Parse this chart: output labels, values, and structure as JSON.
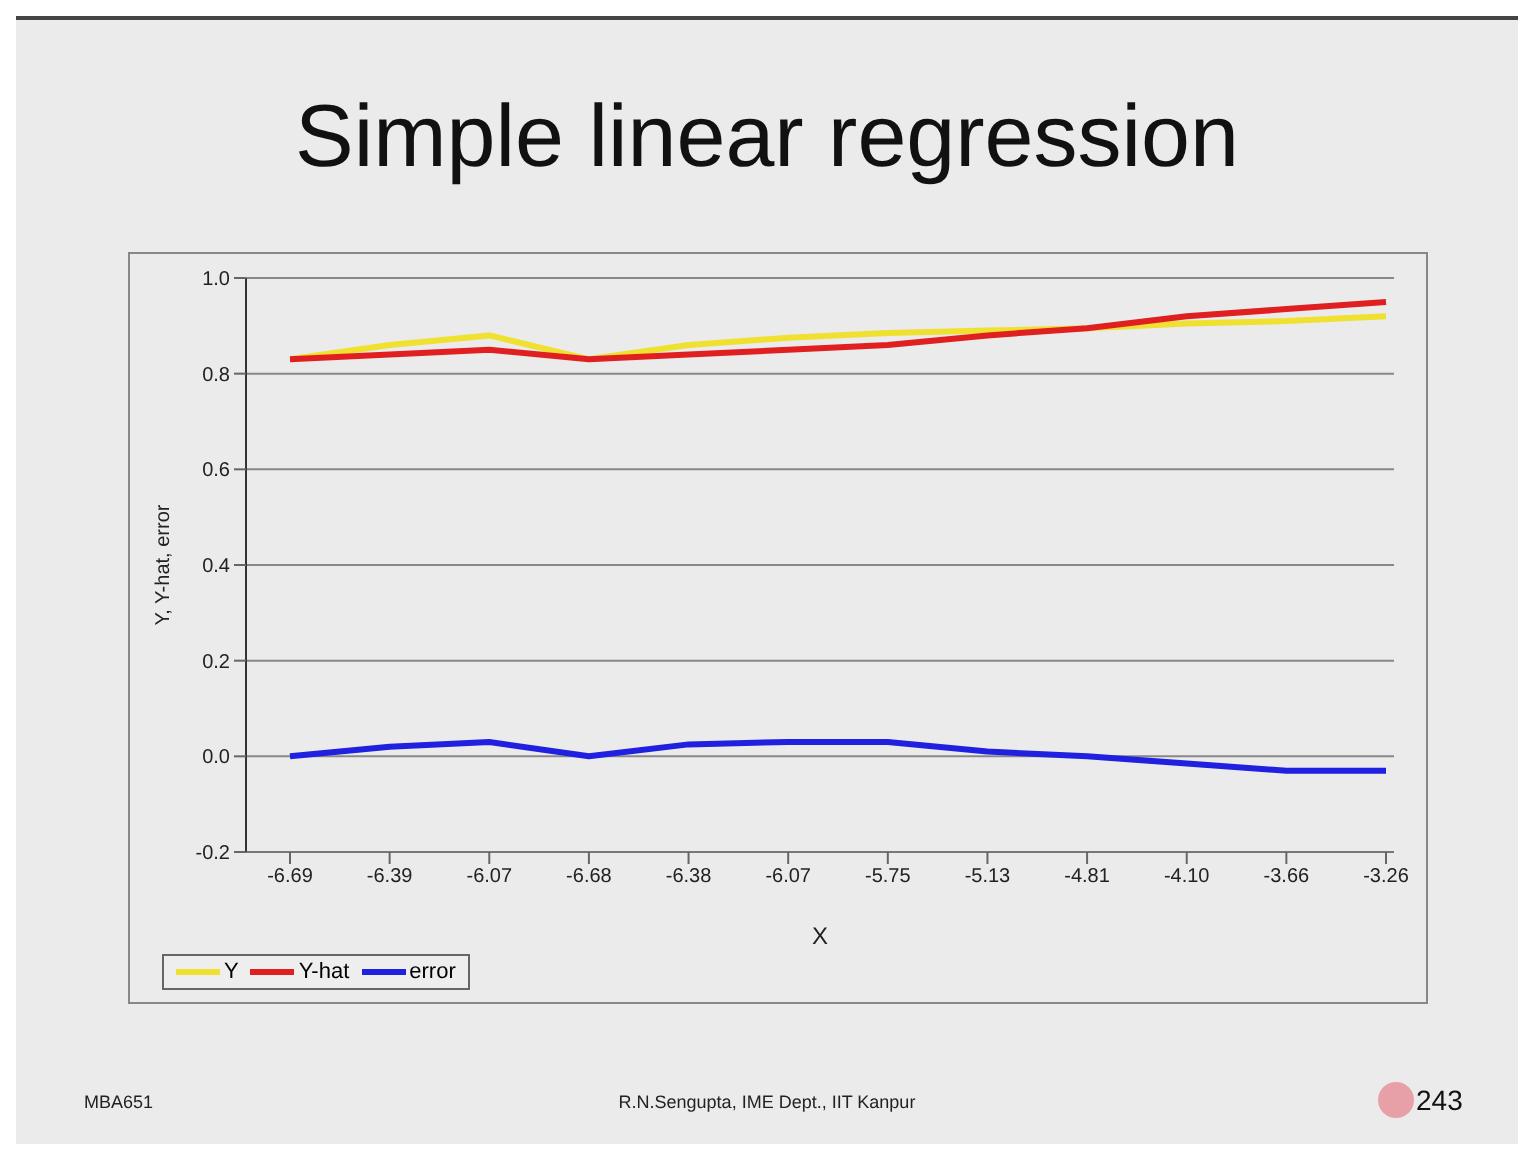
{
  "chart_data": {
    "type": "line",
    "title": "Simple linear regression",
    "xlabel": "X",
    "ylabel": "Y, Y-hat, error",
    "categories": [
      "-6.69",
      "-6.39",
      "-6.07",
      "-6.68",
      "-6.38",
      "-6.07",
      "-5.75",
      "-5.13",
      "-4.81",
      "-4.10",
      "-3.66",
      "-3.26"
    ],
    "series": [
      {
        "name": "Y",
        "color": "#f0e030",
        "values": [
          0.83,
          0.86,
          0.88,
          0.83,
          0.86,
          0.875,
          0.885,
          0.89,
          0.895,
          0.905,
          0.91,
          0.92
        ]
      },
      {
        "name": "Y-hat",
        "color": "#e02020",
        "values": [
          0.83,
          0.84,
          0.85,
          0.83,
          0.84,
          0.85,
          0.86,
          0.88,
          0.895,
          0.92,
          0.935,
          0.95
        ]
      },
      {
        "name": "error",
        "color": "#2020e0",
        "values": [
          0.0,
          0.02,
          0.03,
          0.0,
          0.025,
          0.03,
          0.03,
          0.01,
          0.0,
          -0.015,
          -0.03,
          -0.03
        ]
      }
    ],
    "ylim": [
      -0.2,
      1.0
    ],
    "yticks": [
      {
        "value": -0.2,
        "label": "-0.2"
      },
      {
        "value": 0,
        "label": "0.0"
      },
      {
        "value": 0.2,
        "label": "0.2"
      },
      {
        "value": 0.4,
        "label": "0.4"
      },
      {
        "value": 0.6,
        "label": "0.6"
      },
      {
        "value": 0.8,
        "label": "0.8"
      },
      {
        "value": 1.0,
        "label": "1.0"
      }
    ],
    "grid": "y",
    "legend": "bottom left",
    "marker": "none",
    "line_style": "solid",
    "annotations": [
      "MBA651",
      "R.N.Sengupta, IME Dept., IIT Kanpur",
      "243"
    ]
  }
}
